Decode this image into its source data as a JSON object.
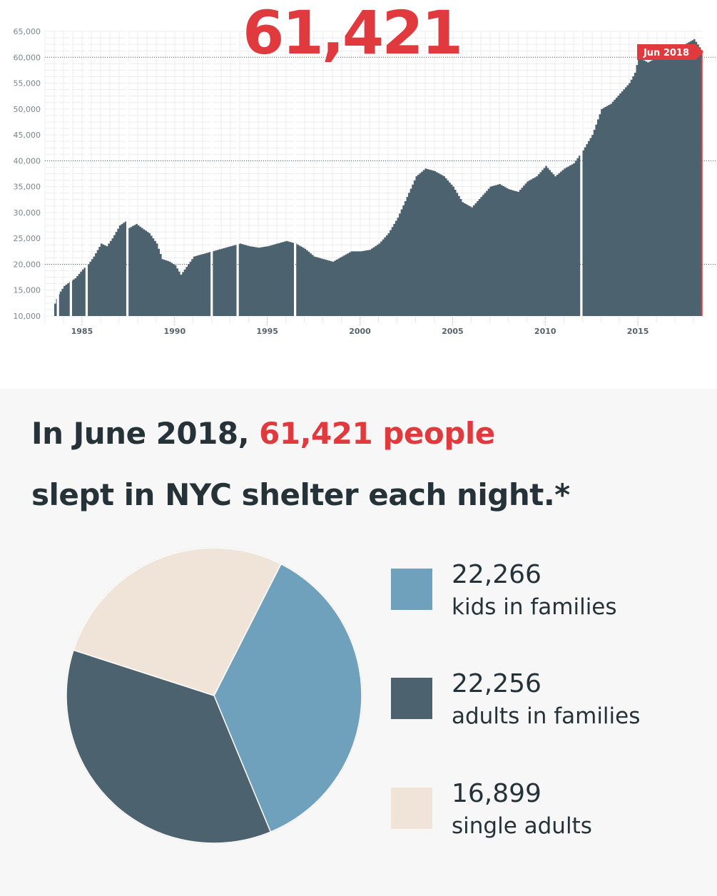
{
  "chart_data": [
    {
      "type": "area",
      "big_number": "61,421",
      "annotation": "Jun 2018",
      "x_ticks": [
        "1985",
        "1990",
        "1995",
        "2000",
        "2005",
        "2010",
        "2015"
      ],
      "y_ticks": [
        "10,000",
        "15,000",
        "20,000",
        "25,000",
        "30,000",
        "35,000",
        "40,000",
        "45,000",
        "50,000",
        "55,000",
        "60,000",
        "65,000"
      ],
      "ylim": [
        10000,
        65000
      ],
      "xlim": [
        1983.0,
        2018.5
      ],
      "colors": {
        "area": "#4d626f",
        "accent": "#e03a3e",
        "grid": "#ececec"
      },
      "gaps": [
        1983.7,
        1984.4,
        1985.25,
        1987.45,
        1992.0,
        1993.4,
        1996.5,
        2011.95
      ],
      "x": [
        1983.5,
        1983.7,
        1984.0,
        1984.3,
        1984.6,
        1985.0,
        1985.3,
        1985.6,
        1986.0,
        1986.3,
        1986.6,
        1987.0,
        1987.4,
        1987.5,
        1987.9,
        1988.2,
        1988.6,
        1989.0,
        1989.3,
        1989.7,
        1990.0,
        1990.3,
        1990.6,
        1991.0,
        1991.5,
        1992.0,
        1992.5,
        1993.0,
        1993.5,
        1994.0,
        1994.5,
        1995.0,
        1995.5,
        1996.0,
        1996.5,
        1997.0,
        1997.5,
        1998.0,
        1998.5,
        1999.0,
        1999.5,
        2000.0,
        2000.5,
        2001.0,
        2001.5,
        2002.0,
        2002.5,
        2003.0,
        2003.5,
        2004.0,
        2004.5,
        2005.0,
        2005.5,
        2006.0,
        2006.5,
        2007.0,
        2007.5,
        2008.0,
        2008.5,
        2009.0,
        2009.5,
        2010.0,
        2010.5,
        2011.0,
        2011.5,
        2012.0,
        2012.5,
        2013.0,
        2013.5,
        2014.0,
        2014.5,
        2014.8,
        2015.0,
        2015.5,
        2016.0,
        2016.5,
        2017.0,
        2017.5,
        2018.0,
        2018.4
      ],
      "values": [
        12400,
        14200,
        15800,
        16600,
        17300,
        19000,
        20000,
        21500,
        24000,
        23500,
        25000,
        27500,
        28500,
        27000,
        27800,
        27000,
        26000,
        24000,
        21000,
        20500,
        19800,
        18000,
        19500,
        21500,
        22000,
        22500,
        23000,
        23500,
        24000,
        23500,
        23200,
        23500,
        24000,
        24500,
        24000,
        23000,
        21500,
        21000,
        20500,
        21500,
        22500,
        22500,
        22800,
        24000,
        26000,
        29000,
        33000,
        37000,
        38500,
        38000,
        37000,
        35000,
        32000,
        31000,
        33000,
        35000,
        35500,
        34500,
        34000,
        36000,
        37000,
        39000,
        37000,
        38500,
        39500,
        42000,
        45000,
        50000,
        51000,
        53000,
        55000,
        57000,
        60000,
        59000,
        60000,
        61000,
        62000,
        62500,
        63500,
        61421
      ]
    },
    {
      "type": "pie",
      "title": "In June 2018, 61,421 people slept in NYC shelter each night.*",
      "slices": [
        {
          "label": "kids in families",
          "value": 22266,
          "value_text": "22,266",
          "color": "#6fa1bc"
        },
        {
          "label": "adults in families",
          "value": 22256,
          "value_text": "22,256",
          "color": "#4d626f"
        },
        {
          "label": "single adults",
          "value": 16899,
          "value_text": "16,899",
          "color": "#efe4d7"
        }
      ]
    }
  ],
  "headline": {
    "part1": "In June 2018, ",
    "highlight": "61,421 people",
    "line2": "slept in NYC shelter each night.*"
  }
}
